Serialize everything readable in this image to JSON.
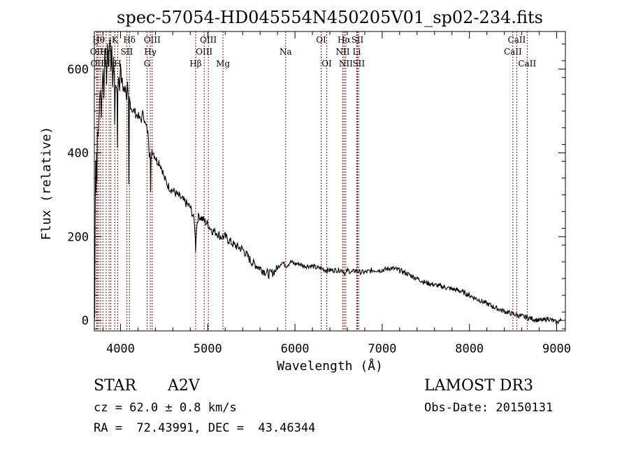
{
  "chart_data": {
    "type": "line",
    "title": "spec-57054-HD045554N450205V01_sp02-234.fits",
    "xlabel": "Wavelength (Å)",
    "ylabel": "Flux (relative)",
    "xlim": [
      3700,
      9100
    ],
    "ylim": [
      -25,
      690
    ],
    "x_ticks": [
      4000,
      5000,
      6000,
      7000,
      8000,
      9000
    ],
    "x_tick_labels": [
      "4000",
      "5000",
      "6000",
      "7000",
      "8000",
      "9000"
    ],
    "y_ticks": [
      0,
      200,
      400,
      600
    ],
    "y_tick_labels": [
      "0",
      "200",
      "400",
      "600"
    ],
    "line_color": "#000000",
    "marker_color": "#8b0000",
    "series": [
      {
        "x": [
          3700,
          3705,
          3710,
          3715,
          3720,
          3725,
          3730,
          3735,
          3740,
          3750,
          3760,
          3770,
          3780,
          3790,
          3800,
          3810,
          3820,
          3830,
          3840,
          3850,
          3860,
          3870,
          3880,
          3890,
          3900,
          3910,
          3920,
          3930,
          3933,
          3940,
          3950,
          3960,
          3965,
          3970,
          3980,
          3990,
          4000,
          4010,
          4020,
          4030,
          4040,
          4050,
          4060,
          4070,
          4080,
          4090,
          4095,
          4102,
          4110,
          4120,
          4140,
          4160,
          4180,
          4200,
          4220,
          4240,
          4260,
          4280,
          4300,
          4320,
          4330,
          4340,
          4345,
          4350,
          4360,
          4380,
          4400,
          4420,
          4440,
          4460,
          4480,
          4500,
          4550,
          4600,
          4650,
          4700,
          4750,
          4800,
          4830,
          4850,
          4858,
          4861,
          4866,
          4880,
          4900,
          4950,
          5000,
          5050,
          5100,
          5150,
          5200,
          5250,
          5300,
          5400,
          5500,
          5600,
          5700,
          5750,
          5800,
          5850,
          5900,
          5950,
          6000,
          6050,
          6100,
          6150,
          6200,
          6250,
          6300,
          6350,
          6400,
          6450,
          6500,
          6550,
          6563,
          6580,
          6600,
          6650,
          6700,
          6750,
          6800,
          6900,
          7000,
          7100,
          7200,
          7300,
          7400,
          7500,
          7600,
          7700,
          7800,
          7900,
          8000,
          8100,
          8200,
          8300,
          8400,
          8500,
          8600,
          8700,
          8800,
          8850,
          8900,
          8950,
          9000,
          9050
        ],
        "y": [
          150,
          5,
          250,
          390,
          310,
          400,
          330,
          460,
          430,
          470,
          520,
          560,
          490,
          560,
          600,
          540,
          640,
          620,
          570,
          660,
          610,
          640,
          680,
          600,
          650,
          560,
          620,
          580,
          470,
          560,
          560,
          540,
          420,
          560,
          590,
          550,
          610,
          570,
          580,
          540,
          560,
          550,
          560,
          520,
          560,
          520,
          320,
          530,
          520,
          510,
          500,
          500,
          490,
          490,
          480,
          480,
          500,
          470,
          460,
          440,
          400,
          400,
          300,
          380,
          410,
          400,
          390,
          380,
          380,
          370,
          360,
          340,
          320,
          310,
          300,
          290,
          280,
          270,
          250,
          230,
          190,
          170,
          200,
          240,
          250,
          240,
          230,
          215,
          210,
          200,
          200,
          190,
          180,
          170,
          140,
          125,
          110,
          115,
          125,
          140,
          130,
          140,
          135,
          135,
          130,
          130,
          130,
          125,
          125,
          120,
          120,
          120,
          120,
          120,
          115,
          110,
          120,
          115,
          120,
          115,
          115,
          120,
          120,
          125,
          120,
          110,
          100,
          90,
          85,
          80,
          75,
          70,
          60,
          50,
          40,
          30,
          22,
          15,
          10,
          5,
          0,
          0,
          5,
          0,
          -5,
          0
        ]
      }
    ],
    "line_markers": [
      {
        "x": 3727,
        "label": "OII",
        "row": 1
      },
      {
        "x": 3733,
        "label": "OII",
        "row": 2
      },
      {
        "x": 3750,
        "label": "Hθ",
        "row": 0
      },
      {
        "x": 3771,
        "label": "",
        "row": 0
      },
      {
        "x": 3798,
        "label": "",
        "row": 0
      },
      {
        "x": 3835,
        "label": "Hη",
        "row": 1
      },
      {
        "x": 3869,
        "label": "Hε",
        "row": 2
      },
      {
        "x": 3889,
        "label": "",
        "row": 0
      },
      {
        "x": 3934,
        "label": "K",
        "row": 0
      },
      {
        "x": 3968,
        "label": "H",
        "row": 2
      },
      {
        "x": 4072,
        "label": "SII",
        "row": 1
      },
      {
        "x": 4102,
        "label": "Hδ",
        "row": 0
      },
      {
        "x": 4304,
        "label": "G",
        "row": 2
      },
      {
        "x": 4341,
        "label": "Hγ",
        "row": 1
      },
      {
        "x": 4363,
        "label": "OIII",
        "row": 0
      },
      {
        "x": 4861,
        "label": "Hβ",
        "row": 2
      },
      {
        "x": 4959,
        "label": "OIII",
        "row": 1
      },
      {
        "x": 5007,
        "label": "OIII",
        "row": 0
      },
      {
        "x": 5175,
        "label": "Mg",
        "row": 2
      },
      {
        "x": 5893,
        "label": "Na",
        "row": 1
      },
      {
        "x": 6300,
        "label": "OI",
        "row": 0
      },
      {
        "x": 6364,
        "label": "OI",
        "row": 2
      },
      {
        "x": 6548,
        "label": "NII",
        "row": 1
      },
      {
        "x": 6563,
        "label": "Hα",
        "row": 0
      },
      {
        "x": 6583,
        "label": "NII",
        "row": 2
      },
      {
        "x": 6708,
        "label": "Li",
        "row": 1
      },
      {
        "x": 6716,
        "label": "SII",
        "row": 0
      },
      {
        "x": 6731,
        "label": "SII",
        "row": 2
      },
      {
        "x": 8498,
        "label": "CaII",
        "row": 1
      },
      {
        "x": 8542,
        "label": "CaII",
        "row": 0
      },
      {
        "x": 8662,
        "label": "CaII",
        "row": 2
      }
    ]
  },
  "info": {
    "class_label": "STAR",
    "subclass": "A2V",
    "survey": "LAMOST DR3",
    "cz": "cz = 62.0 ± 0.8 km/s",
    "obs_date": "Obs-Date: 20150131",
    "radec": "RA =  72.43991, DEC =  43.46344"
  }
}
